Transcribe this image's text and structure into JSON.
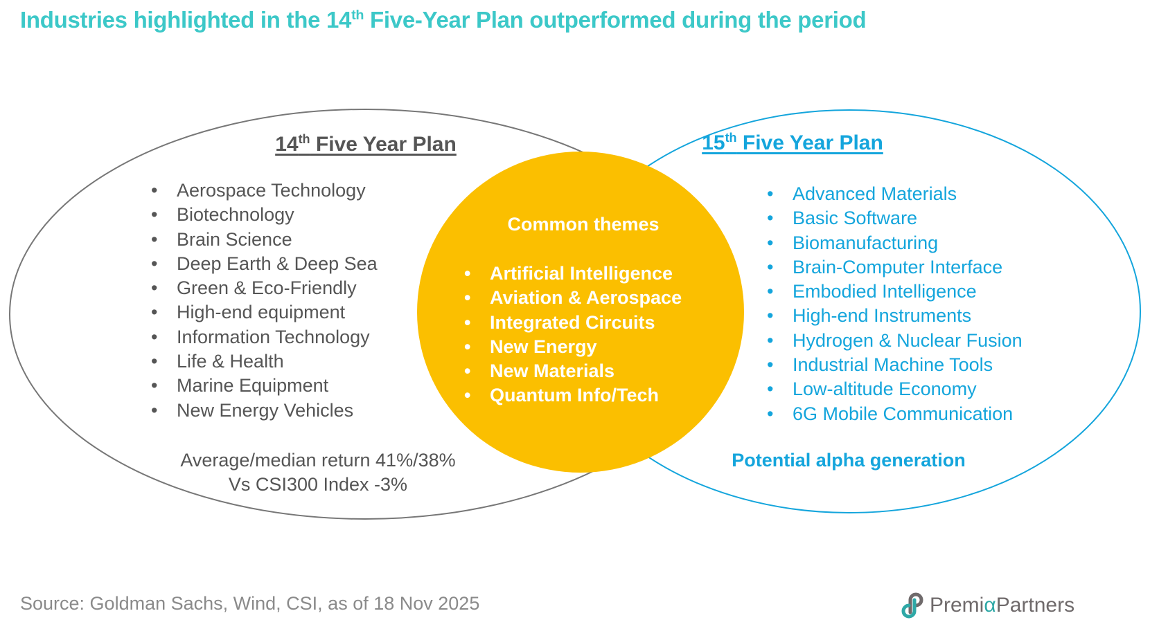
{
  "title": {
    "pre": "Industries highlighted in the 14",
    "sup": "th",
    "post": " Five-Year Plan outperformed during the period"
  },
  "left": {
    "heading_num": "14",
    "heading_sup": "th",
    "heading_rest": " Five Year Plan",
    "items": [
      "Aerospace Technology",
      "Biotechnology",
      "Brain Science",
      "Deep Earth & Deep Sea",
      "Green & Eco-Friendly",
      "High-end equipment",
      "Information Technology",
      "Life & Health",
      "Marine Equipment",
      "New Energy Vehicles"
    ],
    "return_line1": "Average/median return 41%/38%",
    "return_line2": "Vs CSI300 Index -3%"
  },
  "common": {
    "title": "Common themes",
    "items": [
      "Artificial Intelligence",
      "Aviation & Aerospace",
      "Integrated Circuits",
      "New Energy",
      "New Materials",
      "Quantum Info/Tech"
    ]
  },
  "right": {
    "heading_num": "15",
    "heading_sup": "th",
    "heading_rest": " Five Year Plan",
    "items": [
      "Advanced Materials",
      "Basic Software",
      "Biomanufacturing",
      "Brain-Computer Interface",
      "Embodied Intelligence",
      "High-end Instruments",
      "Hydrogen & Nuclear Fusion",
      "Industrial Machine Tools",
      "Low-altitude Economy",
      "6G Mobile Communication"
    ],
    "tagline": "Potential alpha generation"
  },
  "source": "Source: Goldman Sachs, Wind, CSI, as of 18 Nov 2025",
  "logo": {
    "part1": "Premi",
    "alpha": "α",
    "part2": "Partners"
  },
  "colors": {
    "title": "#3cc8c8",
    "accent_blue": "#14a5dc",
    "gold": "#fbbf00",
    "gray_text": "#555555"
  }
}
